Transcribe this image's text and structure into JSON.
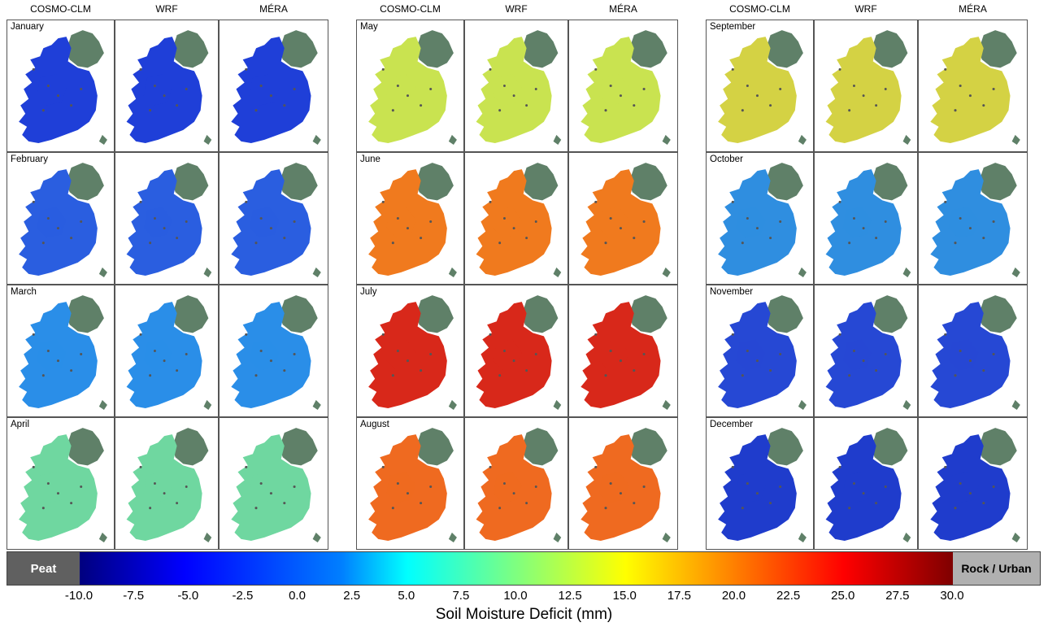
{
  "models": [
    "COSMO-CLM",
    "WRF",
    "MÉRA"
  ],
  "months": [
    "January",
    "February",
    "March",
    "April",
    "May",
    "June",
    "July",
    "August",
    "September",
    "October",
    "November",
    "December"
  ],
  "colors": {
    "northern_ireland": "#5f8068",
    "peat": "#606060",
    "rock_urban": "#b0b0b0",
    "month_fill": {
      "January": "#1f3fd8",
      "February": "#2a5ee0",
      "March": "#2a8ee8",
      "April": "#6fd7a0",
      "May": "#c9e350",
      "June": "#f07a1e",
      "July": "#d8281a",
      "August": "#ef6a20",
      "September": "#d4d244",
      "October": "#2f8ee0",
      "November": "#2648d4",
      "December": "#1f3ccc"
    }
  },
  "legend": {
    "peat_label": "Peat",
    "rock_label": "Rock / Urban",
    "ticks": [
      "-10.0",
      "-7.5",
      "-5.0",
      "-2.5",
      "0.0",
      "2.5",
      "5.0",
      "7.5",
      "10.0",
      "12.5",
      "15.0",
      "17.5",
      "20.0",
      "22.5",
      "25.0",
      "27.5",
      "30.0"
    ],
    "title": "Soil Moisture Deficit (mm)"
  }
}
